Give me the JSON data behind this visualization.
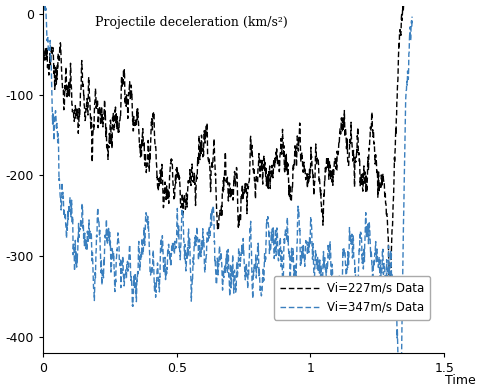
{
  "title": "Projectile deceleration (km/s²)",
  "xlabel": "Time (ms)",
  "xlim": [
    0,
    1.5
  ],
  "ylim": [
    -420,
    10
  ],
  "yticks": [
    -400,
    -300,
    -200,
    -100,
    0
  ],
  "xticks": [
    0,
    0.5,
    1,
    1.5
  ],
  "xtick_labels": [
    "0",
    "0.5",
    "1",
    "1.5"
  ],
  "color_227": "#000000",
  "color_347": "#3a7fbe",
  "legend_227": "Vi=227m/s Data",
  "legend_347": "Vi=347m/s Data",
  "seed": 42,
  "bg_color": "#ffffff"
}
